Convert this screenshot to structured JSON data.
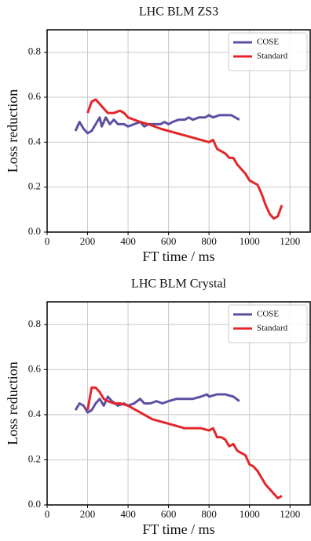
{
  "chart_data": [
    {
      "type": "line",
      "title": "LHC BLM ZS3",
      "x_label": "FT time / ms",
      "y_label": "Loss reduction",
      "xlim": [
        0,
        1300
      ],
      "ylim": [
        0,
        0.9
      ],
      "xticks": [
        0,
        200,
        400,
        600,
        800,
        1000,
        1200
      ],
      "yticks": [
        {
          "value": 0,
          "label": "0.0"
        },
        0.2,
        0.4,
        0.6,
        0.8
      ],
      "grid": true,
      "legend": "upper right",
      "series": [
        {
          "name": "COSE",
          "color": "#5e4fa2",
          "x": [
            140,
            160,
            180,
            200,
            220,
            240,
            260,
            270,
            290,
            310,
            330,
            350,
            380,
            400,
            430,
            460,
            480,
            500,
            530,
            560,
            580,
            600,
            620,
            650,
            680,
            700,
            720,
            750,
            780,
            800,
            820,
            850,
            880,
            910,
            950
          ],
          "values": [
            0.45,
            0.49,
            0.46,
            0.44,
            0.45,
            0.48,
            0.51,
            0.47,
            0.51,
            0.48,
            0.5,
            0.48,
            0.48,
            0.47,
            0.48,
            0.49,
            0.47,
            0.48,
            0.48,
            0.48,
            0.49,
            0.48,
            0.49,
            0.5,
            0.5,
            0.51,
            0.5,
            0.51,
            0.51,
            0.52,
            0.51,
            0.52,
            0.52,
            0.52,
            0.5
          ]
        },
        {
          "name": "Standard",
          "color": "#e4262a",
          "x": [
            200,
            220,
            240,
            260,
            280,
            300,
            330,
            360,
            380,
            400,
            430,
            460,
            500,
            530,
            560,
            600,
            640,
            680,
            720,
            760,
            800,
            820,
            840,
            860,
            880,
            900,
            920,
            940,
            960,
            980,
            1000,
            1020,
            1040,
            1060,
            1080,
            1100,
            1120,
            1140,
            1160
          ],
          "values": [
            0.53,
            0.58,
            0.59,
            0.57,
            0.55,
            0.53,
            0.53,
            0.54,
            0.53,
            0.51,
            0.5,
            0.49,
            0.48,
            0.47,
            0.46,
            0.45,
            0.44,
            0.43,
            0.42,
            0.41,
            0.4,
            0.41,
            0.37,
            0.36,
            0.35,
            0.33,
            0.33,
            0.3,
            0.28,
            0.26,
            0.23,
            0.22,
            0.21,
            0.17,
            0.12,
            0.08,
            0.06,
            0.07,
            0.12
          ]
        }
      ]
    },
    {
      "type": "line",
      "title": "LHC BLM Crystal",
      "x_label": "FT time / ms",
      "y_label": "Loss reduction",
      "xlim": [
        0,
        1300
      ],
      "ylim": [
        0,
        0.9
      ],
      "xticks": [
        0,
        200,
        400,
        600,
        800,
        1000,
        1200
      ],
      "yticks": [
        {
          "value": 0,
          "label": "0.0"
        },
        0.2,
        0.4,
        0.6,
        0.8
      ],
      "grid": true,
      "legend": "upper right",
      "series": [
        {
          "name": "COSE",
          "color": "#5e4fa2",
          "x": [
            140,
            160,
            180,
            200,
            220,
            240,
            260,
            280,
            300,
            320,
            350,
            380,
            400,
            430,
            460,
            480,
            510,
            540,
            570,
            600,
            640,
            680,
            720,
            760,
            790,
            800,
            840,
            880,
            920,
            950
          ],
          "values": [
            0.42,
            0.45,
            0.44,
            0.41,
            0.42,
            0.45,
            0.47,
            0.44,
            0.48,
            0.46,
            0.44,
            0.45,
            0.44,
            0.45,
            0.47,
            0.45,
            0.45,
            0.46,
            0.45,
            0.46,
            0.47,
            0.47,
            0.47,
            0.48,
            0.49,
            0.48,
            0.49,
            0.49,
            0.48,
            0.46
          ]
        },
        {
          "name": "Standard",
          "color": "#e4262a",
          "x": [
            200,
            220,
            240,
            260,
            280,
            300,
            330,
            360,
            400,
            440,
            480,
            520,
            560,
            600,
            640,
            680,
            720,
            760,
            800,
            820,
            840,
            860,
            880,
            900,
            920,
            940,
            960,
            980,
            1000,
            1020,
            1040,
            1060,
            1080,
            1100,
            1120,
            1140,
            1160
          ],
          "values": [
            0.42,
            0.52,
            0.52,
            0.5,
            0.47,
            0.46,
            0.45,
            0.45,
            0.44,
            0.42,
            0.4,
            0.38,
            0.37,
            0.36,
            0.35,
            0.34,
            0.34,
            0.34,
            0.33,
            0.34,
            0.3,
            0.3,
            0.29,
            0.26,
            0.27,
            0.24,
            0.23,
            0.22,
            0.18,
            0.17,
            0.15,
            0.12,
            0.09,
            0.07,
            0.05,
            0.03,
            0.04
          ]
        }
      ]
    }
  ]
}
